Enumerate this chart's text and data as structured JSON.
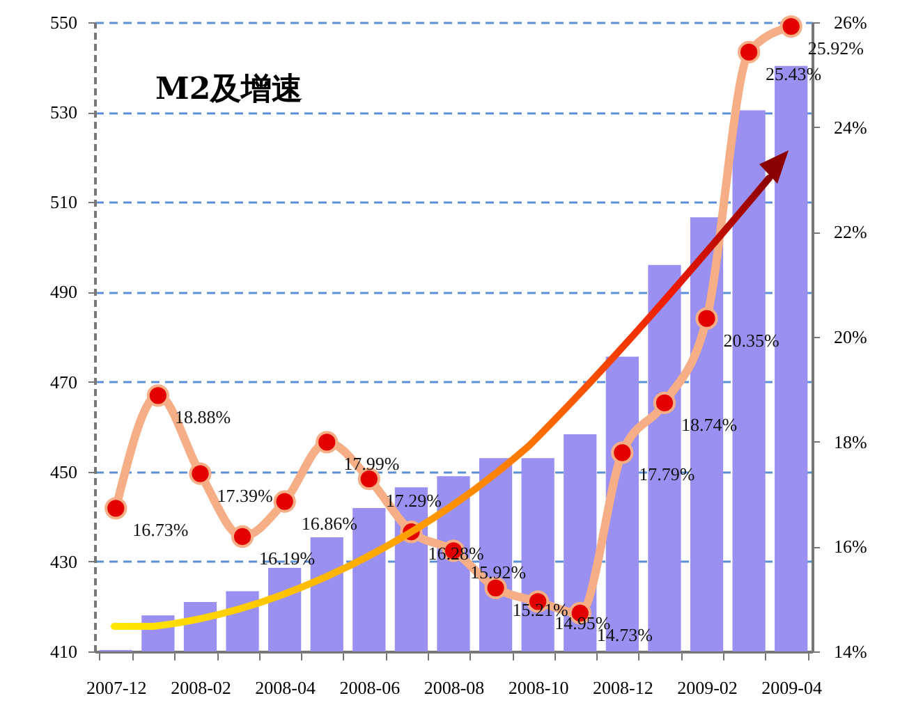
{
  "chart_data": {
    "type": "bar",
    "title": "M2及增速",
    "categories": [
      "2007-12",
      null,
      "2008-02",
      null,
      "2008-04",
      null,
      "2008-06",
      null,
      "2008-08",
      null,
      "2008-10",
      null,
      "2008-12",
      null,
      "2009-02",
      null,
      "2009-04"
    ],
    "series": [
      {
        "color": "#9a90f2",
        "values": [
          410.3,
          418.0,
          421.0,
          423.4,
          428.6,
          435.4,
          441.9,
          446.5,
          449.0,
          453.0,
          453.0,
          458.3,
          475.6,
          496.0,
          506.6,
          530.4,
          540.3
        ]
      },
      {
        "type": "line",
        "axis": "y2",
        "color": "#f5ae86",
        "marker": "circle",
        "values": [
          16.73,
          18.88,
          17.39,
          16.19,
          16.86,
          17.99,
          17.29,
          16.28,
          15.92,
          15.21,
          14.95,
          14.73,
          17.79,
          18.74,
          20.35,
          25.43,
          25.92
        ],
        "value_labels": [
          "16.73%",
          "18.88%",
          "17.39%",
          "16.19%",
          "16.86%",
          "17.99%",
          "17.29%",
          "16.28%",
          "15.92%",
          "15.21%",
          "14.95%",
          "14.73%",
          "17.79%",
          "18.74%",
          "20.35%",
          "25.43%",
          "25.92%"
        ]
      }
    ],
    "ylim": [
      410,
      550
    ],
    "yticks": [
      410,
      430,
      450,
      470,
      490,
      510,
      530,
      550
    ],
    "y2lim": [
      14,
      26
    ],
    "y2ticks": [
      {
        "value": 14,
        "label": "14%"
      },
      {
        "value": 16,
        "label": "16%"
      },
      {
        "value": 18,
        "label": "18%"
      },
      {
        "value": 20,
        "label": "20%"
      },
      {
        "value": 22,
        "label": "22%"
      },
      {
        "value": 24,
        "label": "24%"
      },
      {
        "value": 26,
        "label": "26%"
      }
    ],
    "grid": "y"
  }
}
